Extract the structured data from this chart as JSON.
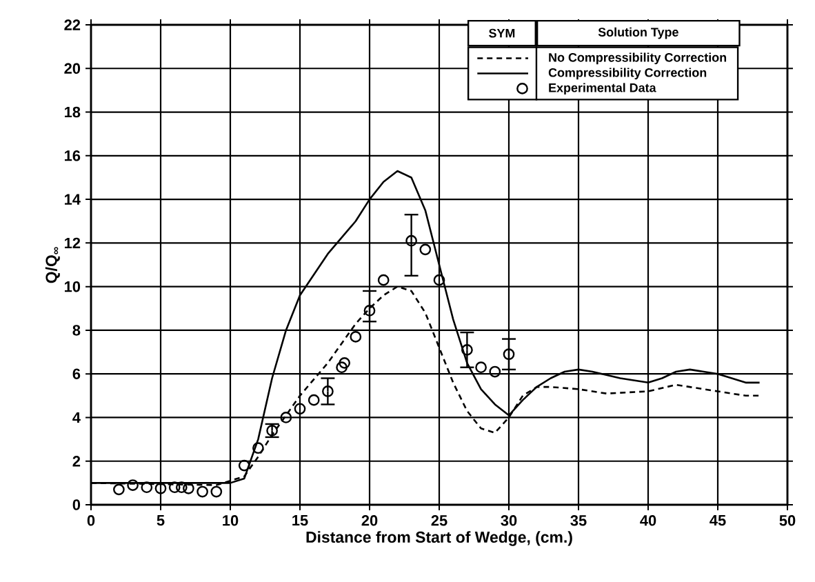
{
  "chart_data": {
    "type": "line",
    "xlabel": "Distance from Start of Wedge, (cm.)",
    "ylabel": "Q/Q$_{∞}$",
    "xlim": [
      0,
      50
    ],
    "xticks": [
      0,
      5,
      10,
      15,
      20,
      25,
      30,
      35,
      40,
      45,
      50
    ],
    "ylim": [
      0,
      22
    ],
    "yticks": [
      0,
      2,
      4,
      6,
      8,
      10,
      12,
      14,
      16,
      18,
      20,
      22
    ],
    "grid": true,
    "legend": "top right",
    "legend_title": "Solution Type",
    "annotations": [
      "SYM"
    ],
    "series": [
      {
        "name": "No Compressibility Correction",
        "line_style": "dashed",
        "color": "#000000",
        "x": [
          0,
          9,
          11,
          12,
          13,
          15,
          17,
          19,
          20,
          21,
          22,
          23,
          24,
          25,
          26,
          27,
          28,
          29,
          30,
          31,
          32,
          33,
          35,
          37,
          40,
          42,
          45,
          47,
          48
        ],
        "values": [
          1.0,
          0.9,
          1.3,
          2.2,
          3.2,
          5.0,
          6.5,
          8.3,
          9.0,
          9.6,
          10.0,
          9.8,
          8.8,
          7.2,
          5.6,
          4.3,
          3.5,
          3.3,
          4.0,
          5.0,
          5.4,
          5.4,
          5.3,
          5.1,
          5.2,
          5.5,
          5.2,
          5.0,
          5.0
        ]
      },
      {
        "name": "Compressibility Correction",
        "line_style": "solid",
        "color": "#000000",
        "x": [
          0,
          10,
          11,
          12,
          13,
          14,
          15,
          17,
          19,
          20,
          21,
          22,
          23,
          24,
          25,
          26,
          27,
          28,
          29,
          30,
          31,
          32,
          33,
          34,
          35,
          36,
          38,
          40,
          41,
          42,
          43,
          45,
          46,
          47,
          48
        ],
        "values": [
          1.0,
          1.0,
          1.2,
          3.0,
          5.8,
          8.0,
          9.6,
          11.5,
          13.0,
          14.0,
          14.8,
          15.3,
          15.0,
          13.5,
          11.0,
          8.5,
          6.5,
          5.3,
          4.6,
          4.1,
          4.8,
          5.4,
          5.8,
          6.1,
          6.2,
          6.1,
          5.8,
          5.6,
          5.8,
          6.1,
          6.2,
          6.0,
          5.8,
          5.6,
          5.6
        ]
      },
      {
        "name": "Experimental Data",
        "type": "scatter",
        "marker": "circle",
        "color": "#000000",
        "x": [
          2,
          3,
          4,
          5,
          6,
          6.5,
          7,
          8,
          9,
          11,
          12,
          13,
          14,
          15,
          16,
          17,
          18,
          18.2,
          19,
          20,
          21,
          23,
          24,
          25,
          27,
          28,
          29,
          30
        ],
        "values": [
          0.7,
          0.9,
          0.8,
          0.75,
          0.8,
          0.8,
          0.75,
          0.6,
          0.6,
          1.8,
          2.6,
          3.4,
          4.0,
          4.4,
          4.8,
          5.2,
          6.3,
          6.5,
          7.7,
          8.9,
          10.3,
          12.1,
          11.7,
          10.3,
          7.1,
          6.3,
          6.1,
          6.9
        ],
        "errors": [
          null,
          null,
          null,
          null,
          null,
          null,
          null,
          null,
          null,
          null,
          null,
          [
            3.1,
            3.7
          ],
          null,
          null,
          null,
          [
            4.6,
            5.8
          ],
          null,
          null,
          null,
          [
            8.4,
            9.8
          ],
          null,
          [
            10.5,
            13.3
          ],
          null,
          null,
          [
            6.3,
            7.9
          ],
          null,
          null,
          [
            6.2,
            7.6
          ]
        ]
      }
    ]
  }
}
